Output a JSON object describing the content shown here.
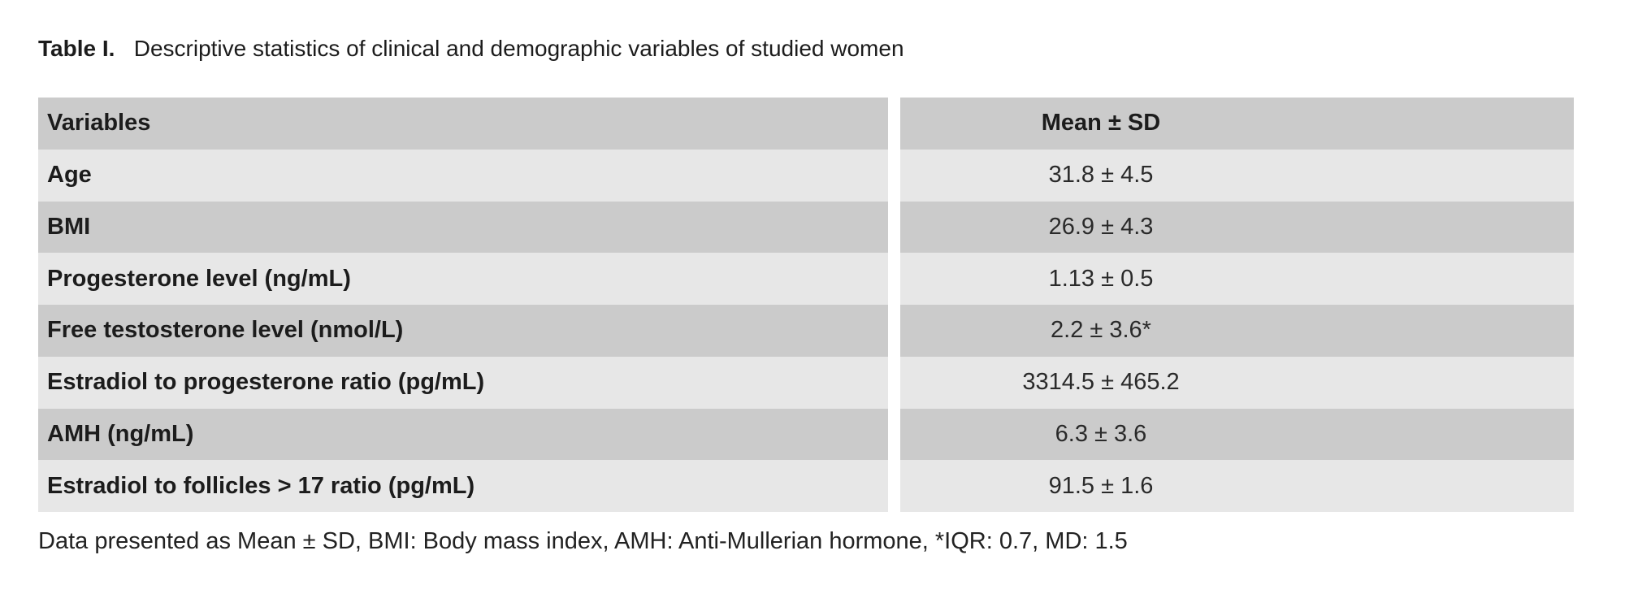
{
  "title": {
    "label": "Table I.",
    "text": "Descriptive statistics of clinical and demographic variables of studied women"
  },
  "table": {
    "columns": [
      "Variables",
      "Mean ± SD"
    ],
    "rows": [
      {
        "variable": "Age",
        "value": "31.8 ± 4.5"
      },
      {
        "variable": "BMI",
        "value": "26.9 ± 4.3"
      },
      {
        "variable": "Progesterone level (ng/mL)",
        "value": "1.13 ± 0.5"
      },
      {
        "variable": "Free testosterone level (nmol/L)",
        "value": "2.2 ± 3.6*"
      },
      {
        "variable": "Estradiol to progesterone ratio (pg/mL)",
        "value": "3314.5 ± 465.2"
      },
      {
        "variable": "AMH (ng/mL)",
        "value": "6.3 ± 3.6"
      },
      {
        "variable": "Estradiol to follicles > 17 ratio (pg/mL)",
        "value": "91.5 ± 1.6"
      }
    ]
  },
  "footnote": {
    "text": "Data presented as Mean ± SD, BMI: Body mass index, AMH: Anti-Mullerian hormone, *IQR: 0.7, MD: 1.5"
  },
  "colors": {
    "row_dark": "#cbcbcb",
    "row_light": "#e7e7e7",
    "text": "#1c1c1c",
    "background": "#ffffff"
  },
  "chart_data": {
    "type": "table",
    "title": "Table I. Descriptive statistics of clinical and demographic variables of studied women",
    "columns": [
      "Variables",
      "Mean ± SD"
    ],
    "rows": [
      [
        "Age",
        "31.8 ± 4.5"
      ],
      [
        "BMI",
        "26.9 ± 4.3"
      ],
      [
        "Progesterone level (ng/mL)",
        "1.13 ± 0.5"
      ],
      [
        "Free testosterone level (nmol/L)",
        "2.2 ± 3.6*"
      ],
      [
        "Estradiol to progesterone ratio (pg/mL)",
        "3314.5 ± 465.2"
      ],
      [
        "AMH (ng/mL)",
        "6.3 ± 3.6"
      ],
      [
        "Estradiol to follicles > 17 ratio (pg/mL)",
        "91.5 ± 1.6"
      ]
    ],
    "footnote": "Data presented as Mean ± SD, BMI: Body mass index, AMH: Anti-Mullerian hormone, *IQR: 0.7, MD: 1.5"
  }
}
